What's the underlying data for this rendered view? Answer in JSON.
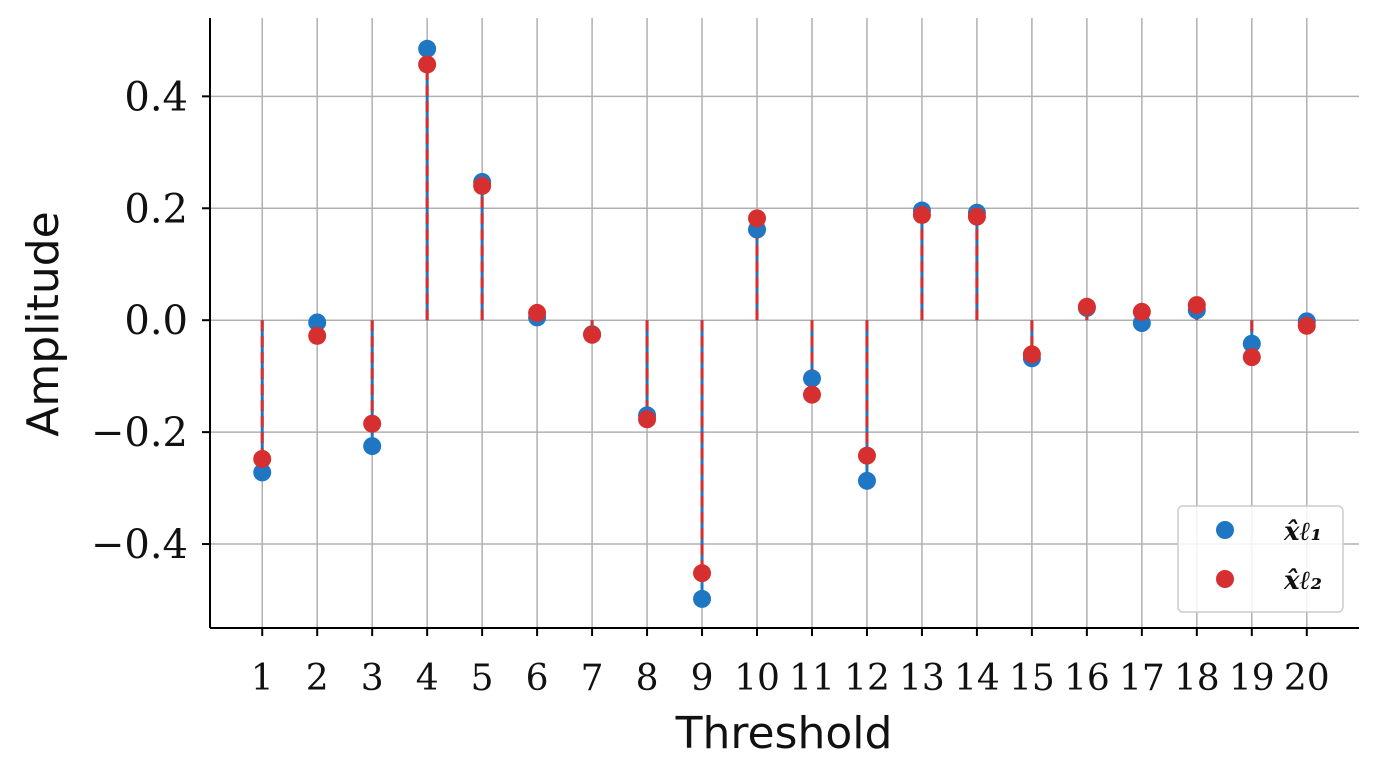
{
  "chart_data": {
    "type": "stem",
    "xlabel": "Threshold",
    "ylabel": "Amplitude",
    "xlim": [
      0.05,
      20.95
    ],
    "ylim": [
      -0.55,
      0.54
    ],
    "x": [
      1,
      2,
      3,
      4,
      5,
      6,
      7,
      8,
      9,
      10,
      11,
      12,
      13,
      14,
      15,
      16,
      17,
      18,
      19,
      20
    ],
    "x_tick_labels": [
      "1",
      "2",
      "3",
      "4",
      "5",
      "6",
      "7",
      "8",
      "9",
      "10",
      "11",
      "12",
      "13",
      "14",
      "15",
      "16",
      "17",
      "18",
      "19",
      "20"
    ],
    "y_ticks": [
      -0.4,
      -0.2,
      0.0,
      0.2,
      0.4
    ],
    "y_tick_labels": [
      "−0.4",
      "−0.2",
      "0.0",
      "0.2",
      "0.4"
    ],
    "grid": true,
    "legend_position": "bottom-right",
    "series": [
      {
        "name": "x̂ℓ₁",
        "color": "#1f77c4",
        "stem_style": "solid",
        "values": [
          -0.272,
          -0.004,
          -0.225,
          0.485,
          0.247,
          0.005,
          -0.025,
          -0.17,
          -0.498,
          0.162,
          -0.104,
          -0.287,
          0.196,
          0.192,
          -0.068,
          0.022,
          -0.005,
          0.018,
          -0.042,
          -0.002
        ]
      },
      {
        "name": "x̂ℓ₂",
        "color": "#d62f2f",
        "stem_style": "dashed",
        "values": [
          -0.248,
          -0.028,
          -0.185,
          0.457,
          0.24,
          0.013,
          -0.026,
          -0.177,
          -0.452,
          0.182,
          -0.133,
          -0.242,
          0.188,
          0.185,
          -0.061,
          0.024,
          0.015,
          0.027,
          -0.066,
          -0.01
        ]
      }
    ]
  }
}
